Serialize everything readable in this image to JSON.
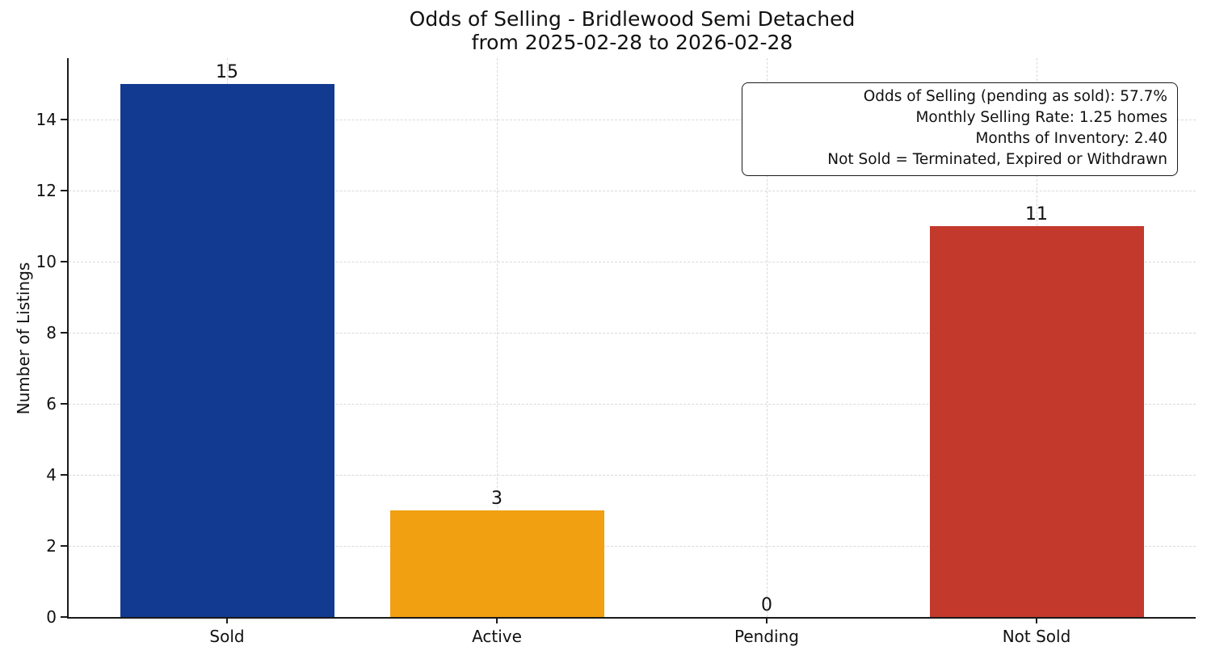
{
  "chart_data": {
    "type": "bar",
    "title": "Odds of Selling - Bridlewood Semi Detached",
    "subtitle": "from 2025-02-28 to 2026-02-28",
    "categories": [
      "Sold",
      "Active",
      "Pending",
      "Not Sold"
    ],
    "values": [
      15,
      3,
      0,
      11
    ],
    "value_labels": [
      "15",
      "3",
      "0",
      "11"
    ],
    "bar_colors": [
      "#123a91",
      "#f0a011",
      null,
      "#c3392c"
    ],
    "xlabel": "",
    "ylabel": "Number of Listings",
    "ylim": [
      0,
      15.8
    ],
    "yticks": [
      0,
      2,
      4,
      6,
      8,
      10,
      12,
      14
    ],
    "grid": {
      "visible": true,
      "style": "dashed",
      "axes": "both",
      "color": "#d9d9d9"
    },
    "legend": null,
    "annotation_box": {
      "position": "top-right",
      "lines": [
        "Odds of Selling (pending as sold): 57.7%",
        "Monthly Selling Rate: 1.25 homes",
        "Months of Inventory: 2.40",
        "Not Sold = Terminated, Expired or Withdrawn"
      ]
    }
  }
}
